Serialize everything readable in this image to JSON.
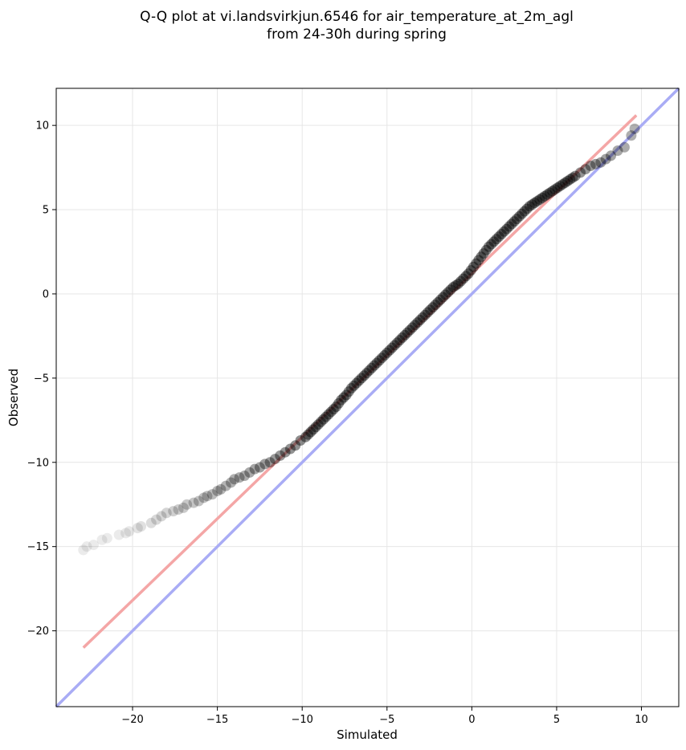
{
  "chart_data": {
    "type": "scatter",
    "title_lines": [
      "Q-Q plot at vi.landsvirkjun.6546 for air_temperature_at_2m_agl",
      "from 24-30h during spring"
    ],
    "xlabel": "Simulated",
    "ylabel": "Observed",
    "xlim": [
      -24.5,
      12.2
    ],
    "ylim": [
      -24.5,
      12.2
    ],
    "xticks": [
      -20,
      -15,
      -10,
      -5,
      0,
      5,
      10
    ],
    "yticks": [
      -20,
      -15,
      -10,
      -5,
      0,
      5,
      10
    ],
    "tick_labels_x": [
      "−20",
      "−15",
      "−10",
      "−5",
      "0",
      "5",
      "10"
    ],
    "tick_labels_y": [
      "−20",
      "−15",
      "−10",
      "−5",
      "0",
      "5",
      "10"
    ],
    "grid": true,
    "quantile_points": {
      "x": [
        -22.9,
        -22.7,
        -22.3,
        -21.8,
        -21.5,
        -20.8,
        -20.4,
        -20.2,
        -19.7,
        -19.5,
        -18.9,
        -18.6,
        -18.3,
        -18.0,
        -17.6,
        -17.3,
        -17.0,
        -16.8,
        -16.4,
        -16.1,
        -15.8,
        -15.6,
        -15.3,
        -15.0,
        -14.8,
        -14.5,
        -14.2,
        -14.0,
        -13.7,
        -13.4,
        -13.1,
        -12.8,
        -12.5,
        -12.2,
        -11.9,
        -11.6,
        -11.3,
        -11.0,
        -10.7,
        -10.4,
        -10.1,
        -9.8,
        -9.5,
        -9.2,
        -8.9,
        -8.6,
        -8.3,
        -8.0,
        -7.7,
        -7.4,
        -7.1,
        -6.8,
        -6.5,
        -6.2,
        -5.9,
        -5.6,
        -5.3,
        -5.0,
        -4.7,
        -4.4,
        -4.1,
        -3.8,
        -3.5,
        -3.2,
        -2.9,
        -2.6,
        -2.3,
        -2.0,
        -1.7,
        -1.4,
        -1.1,
        -0.8,
        -0.5,
        -0.2,
        0.1,
        0.4,
        0.7,
        1.0,
        1.3,
        1.6,
        1.9,
        2.2,
        2.5,
        2.8,
        3.1,
        3.4,
        3.7,
        4.0,
        4.3,
        4.6,
        4.9,
        5.2,
        5.5,
        5.8,
        6.1,
        6.4,
        6.7,
        7.0,
        7.3,
        7.6,
        7.9,
        8.2,
        8.6,
        9.0,
        9.4,
        9.6
      ],
      "y": [
        -15.2,
        -15.0,
        -14.9,
        -14.6,
        -14.5,
        -14.3,
        -14.2,
        -14.1,
        -13.9,
        -13.8,
        -13.6,
        -13.4,
        -13.2,
        -13.0,
        -12.9,
        -12.8,
        -12.7,
        -12.5,
        -12.4,
        -12.3,
        -12.1,
        -12.0,
        -11.9,
        -11.7,
        -11.6,
        -11.4,
        -11.2,
        -11.0,
        -10.9,
        -10.8,
        -10.6,
        -10.4,
        -10.3,
        -10.1,
        -10.0,
        -9.8,
        -9.6,
        -9.4,
        -9.2,
        -9.0,
        -8.7,
        -8.5,
        -8.2,
        -7.9,
        -7.6,
        -7.3,
        -7.0,
        -6.7,
        -6.3,
        -6.0,
        -5.6,
        -5.3,
        -5.0,
        -4.7,
        -4.4,
        -4.1,
        -3.8,
        -3.5,
        -3.2,
        -2.9,
        -2.6,
        -2.3,
        -2.0,
        -1.7,
        -1.4,
        -1.1,
        -0.8,
        -0.5,
        -0.2,
        0.1,
        0.4,
        0.6,
        0.9,
        1.2,
        1.6,
        2.0,
        2.4,
        2.8,
        3.1,
        3.4,
        3.7,
        4.0,
        4.3,
        4.6,
        4.9,
        5.2,
        5.4,
        5.6,
        5.8,
        6.0,
        6.2,
        6.4,
        6.6,
        6.8,
        7.0,
        7.2,
        7.4,
        7.6,
        7.7,
        7.8,
        8.0,
        8.2,
        8.5,
        8.7,
        9.4,
        9.8
      ]
    },
    "fit_line": {
      "x": [
        -22.9,
        9.7
      ],
      "y": [
        -21.0,
        10.6
      ],
      "color": "#f4a6a6"
    },
    "identity_line": {
      "x": [
        -24.5,
        12.2
      ],
      "y": [
        -24.5,
        12.2
      ],
      "color": "#a9acf5"
    },
    "point_color": "#000000"
  }
}
